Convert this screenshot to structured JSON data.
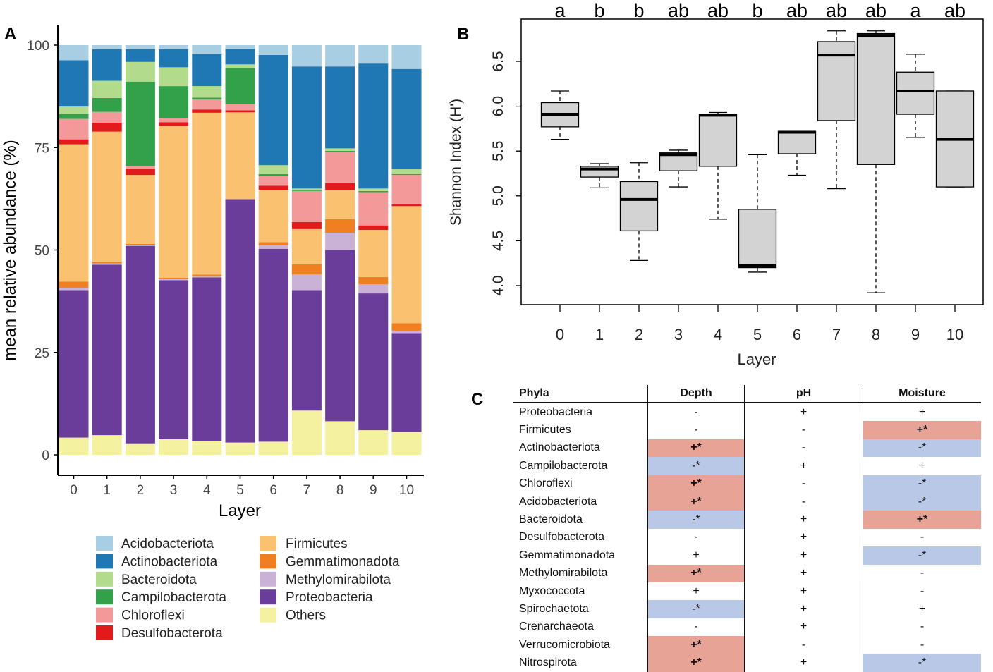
{
  "chart_data": [
    {
      "panel": "A",
      "type": "bar",
      "stacked": true,
      "xlabel": "Layer",
      "ylabel": "mean relative abundance (%)",
      "ylim": [
        0,
        100
      ],
      "yticks": [
        "0",
        "25",
        "50",
        "75",
        "100"
      ],
      "categories": [
        "0",
        "1",
        "2",
        "3",
        "4",
        "5",
        "6",
        "7",
        "8",
        "9",
        "10"
      ],
      "series": [
        {
          "name": "Others",
          "color": "#f4f1a0",
          "values": [
            4.2,
            4.8,
            2.8,
            3.8,
            3.4,
            3.0,
            3.2,
            10.8,
            8.2,
            6.0,
            5.6
          ]
        },
        {
          "name": "Proteobacteria",
          "color": "#6a3d9a",
          "values": [
            36.0,
            41.6,
            48.2,
            38.8,
            39.9,
            59.4,
            47.1,
            29.4,
            41.8,
            33.4,
            24.1
          ]
        },
        {
          "name": "Methylomirabilota",
          "color": "#cab2d6",
          "values": [
            0.6,
            0.3,
            0.2,
            0.3,
            0.2,
            0.0,
            0.8,
            3.8,
            4.2,
            2.2,
            0.6
          ]
        },
        {
          "name": "Gemmatimonadota",
          "color": "#f07f21",
          "values": [
            1.5,
            0.3,
            0.3,
            0.3,
            0.5,
            0.0,
            0.8,
            2.5,
            3.3,
            1.8,
            1.8
          ]
        },
        {
          "name": "Firmicutes",
          "color": "#f9c170",
          "values": [
            33.5,
            31.9,
            16.8,
            37.1,
            39.5,
            21.2,
            12.8,
            8.6,
            7.2,
            11.5,
            28.6
          ]
        },
        {
          "name": "Desulfobacterota",
          "color": "#e31a1c",
          "values": [
            1.2,
            2.2,
            1.5,
            0.9,
            0.8,
            0.5,
            1.0,
            1.7,
            1.6,
            1.1,
            0.4
          ]
        },
        {
          "name": "Chloroflexi",
          "color": "#f4999a",
          "values": [
            5.0,
            2.6,
            0.7,
            0.9,
            2.4,
            1.5,
            2.3,
            7.6,
            7.6,
            8.1,
            7.2
          ]
        },
        {
          "name": "Campilobacterota",
          "color": "#33a04a",
          "values": [
            1.2,
            3.4,
            20.6,
            7.9,
            0.5,
            8.8,
            0.5,
            0.2,
            0.3,
            0.3,
            0.2
          ]
        },
        {
          "name": "Bacteroidota",
          "color": "#b2db8c",
          "values": [
            1.8,
            4.2,
            4.8,
            4.6,
            2.8,
            0.9,
            2.2,
            0.4,
            0.6,
            0.6,
            1.2
          ]
        },
        {
          "name": "Actinobacteriota",
          "color": "#1f78b4",
          "values": [
            11.3,
            7.7,
            3.1,
            4.4,
            7.8,
            3.8,
            26.9,
            29.8,
            20.0,
            30.5,
            24.5
          ]
        },
        {
          "name": "Acidobacteriota",
          "color": "#a7cee3",
          "values": [
            3.7,
            1.0,
            1.0,
            1.0,
            2.2,
            0.9,
            2.4,
            5.2,
            5.2,
            4.5,
            5.8
          ]
        }
      ],
      "legend_col1": [
        "Acidobacteriota",
        "Actinobacteriota",
        "Bacteroidota",
        "Campilobacterota",
        "Chloroflexi",
        "Desulfobacterota"
      ],
      "legend_col2": [
        "Firmicutes",
        "Gemmatimonadota",
        "Methylomirabilota",
        "Proteobacteria",
        "Others"
      ],
      "legend_col1_display": [
        "Acidobacteriota",
        "Actinobacteriota",
        "Bacteroidota",
        "Campilobacterota",
        "Chloroflexi",
        "Desulfobacterota"
      ],
      "legend_placement": "bottom"
    },
    {
      "panel": "B",
      "type": "boxplot",
      "xlabel": "Layer",
      "ylabel": "Shannon Index (H')",
      "ylim": [
        3.9,
        6.85
      ],
      "yticks": [
        4.0,
        4.5,
        5.0,
        5.5,
        6.0,
        6.5
      ],
      "ytick_labels": [
        "4.0",
        "4.5",
        "5.0",
        "5.5",
        "6.0",
        "6.5"
      ],
      "categories": [
        "0",
        "1",
        "2",
        "3",
        "4",
        "5",
        "6",
        "7",
        "8",
        "9",
        "10"
      ],
      "letters": [
        "a",
        "b",
        "b",
        "ab",
        "ab",
        "b",
        "ab",
        "ab",
        "ab",
        "a",
        "ab"
      ],
      "boxes": [
        {
          "min": 5.63,
          "q1": 5.77,
          "median": 5.91,
          "q3": 6.04,
          "max": 6.17
        },
        {
          "min": 5.09,
          "q1": 5.21,
          "median": 5.3,
          "q3": 5.33,
          "max": 5.36
        },
        {
          "min": 4.28,
          "q1": 4.61,
          "median": 4.96,
          "q3": 5.16,
          "max": 5.37
        },
        {
          "min": 5.1,
          "q1": 5.28,
          "median": 5.46,
          "q3": 5.48,
          "max": 5.51
        },
        {
          "min": 4.74,
          "q1": 5.33,
          "median": 5.9,
          "q3": 5.91,
          "max": 5.93
        },
        {
          "min": 4.15,
          "q1": 4.2,
          "median": 4.22,
          "q3": 4.85,
          "max": 5.46
        },
        {
          "min": 5.23,
          "q1": 5.47,
          "median": 5.71,
          "q3": 5.72,
          "max": 5.72
        },
        {
          "min": 5.08,
          "q1": 5.84,
          "median": 6.57,
          "q3": 6.72,
          "max": 6.84
        },
        {
          "min": 3.92,
          "q1": 5.35,
          "median": 6.79,
          "q3": 6.81,
          "max": 6.84
        },
        {
          "min": 5.65,
          "q1": 5.91,
          "median": 6.17,
          "q3": 6.38,
          "max": 6.58
        },
        {
          "min": 5.1,
          "q1": 5.1,
          "median": 5.63,
          "q3": 6.17,
          "max": 6.17
        }
      ]
    }
  ],
  "panel_labels": {
    "a": "A",
    "b": "B",
    "c": "C"
  },
  "table": {
    "headers": [
      "Phyla",
      "Depth",
      "pH",
      "Moisture"
    ],
    "rows": [
      {
        "phylum": "Proteobacteria",
        "depth": "-",
        "ph": "+",
        "moisture": "+"
      },
      {
        "phylum": "Firmicutes",
        "depth": "-",
        "ph": "-",
        "moisture": "+*"
      },
      {
        "phylum": "Actinobacteriota",
        "depth": "+*",
        "ph": "-",
        "moisture": "-*"
      },
      {
        "phylum": "Campilobacterota",
        "depth": "-*",
        "ph": "+",
        "moisture": "+"
      },
      {
        "phylum": "Chloroflexi",
        "depth": "+*",
        "ph": "-",
        "moisture": "-*"
      },
      {
        "phylum": "Acidobacteriota",
        "depth": "+*",
        "ph": "-",
        "moisture": "-*"
      },
      {
        "phylum": "Bacteroidota",
        "depth": "-*",
        "ph": "+",
        "moisture": "+*"
      },
      {
        "phylum": "Desulfobacterota",
        "depth": "-",
        "ph": "+",
        "moisture": "-"
      },
      {
        "phylum": "Gemmatimonadota",
        "depth": "+",
        "ph": "+",
        "moisture": "-*"
      },
      {
        "phylum": "Methylomirabilota",
        "depth": "+*",
        "ph": "+",
        "moisture": "-"
      },
      {
        "phylum": "Myxococcota",
        "depth": "+",
        "ph": "+",
        "moisture": "-"
      },
      {
        "phylum": "Spirochaetota",
        "depth": "-*",
        "ph": "+",
        "moisture": "+"
      },
      {
        "phylum": "Crenarchaeota",
        "depth": "-",
        "ph": "+",
        "moisture": "-"
      },
      {
        "phylum": "Verrucomicrobiota",
        "depth": "+*",
        "ph": "-",
        "moisture": "-"
      },
      {
        "phylum": "Nitrospirota",
        "depth": "+*",
        "ph": "+",
        "moisture": "-*"
      }
    ]
  }
}
